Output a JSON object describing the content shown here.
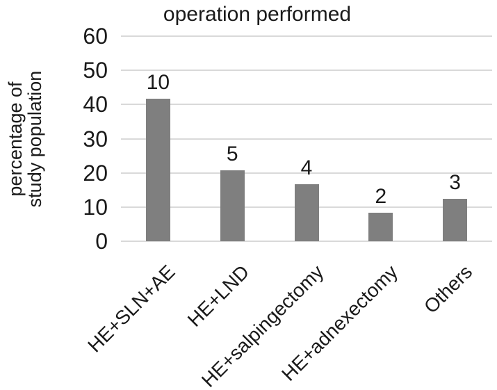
{
  "chart_data": {
    "type": "bar",
    "title": "operation performed",
    "ylabel_lines": [
      "percentage of",
      "study population"
    ],
    "xlabel": "",
    "categories": [
      "HE+SLN+AE",
      "HE+LND",
      "HE+salpingectomy",
      "HE+adnexectomy",
      "Others"
    ],
    "values": [
      41.7,
      20.8,
      16.7,
      8.3,
      12.5
    ],
    "bar_labels": [
      "10",
      "5",
      "4",
      "2",
      "3"
    ],
    "yticks": [
      0,
      10,
      20,
      30,
      40,
      50,
      60
    ],
    "ylim": [
      0,
      60
    ],
    "grid": true,
    "legend": "none",
    "colors": {
      "bar": "#7f7f7f",
      "gridline": "#d9d9d9",
      "text": "#1a1a1a",
      "background": "#ffffff"
    }
  }
}
